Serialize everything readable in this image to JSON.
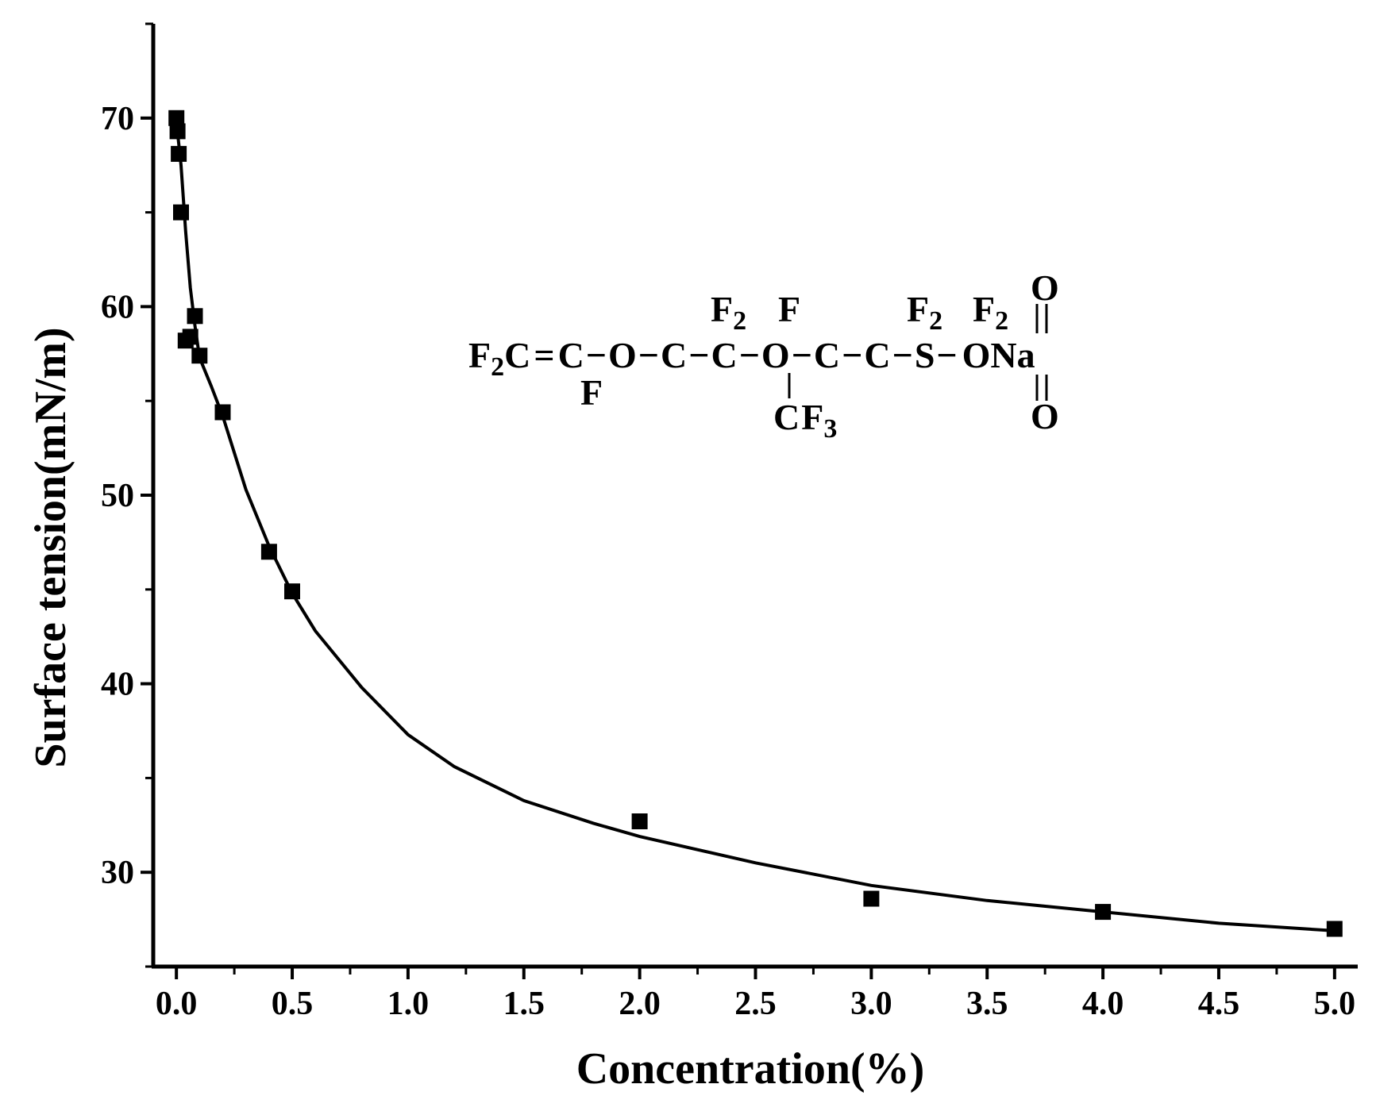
{
  "chart_data": {
    "type": "scatter",
    "title": "",
    "xlabel": "Concentration(%)",
    "ylabel": "Surface tension(mN/m)",
    "xlim": [
      -0.1,
      5.1
    ],
    "ylim": [
      25,
      75
    ],
    "x_ticks": [
      "0.0",
      "0.5",
      "1.0",
      "1.5",
      "2.0",
      "2.5",
      "3.0",
      "3.5",
      "4.0",
      "4.5",
      "5.0"
    ],
    "y_ticks": [
      "30",
      "40",
      "50",
      "60",
      "70"
    ],
    "grid": false,
    "legend": "none",
    "series": [
      {
        "type": "scatter",
        "marker": "square",
        "color": "#000000",
        "x": [
          0.0,
          0.005,
          0.01,
          0.02,
          0.04,
          0.06,
          0.08,
          0.1,
          0.2,
          0.4,
          0.5,
          2.0,
          3.0,
          4.0,
          5.0
        ],
        "y": [
          70.0,
          69.3,
          68.1,
          65.0,
          58.2,
          58.4,
          59.5,
          57.4,
          54.4,
          47.0,
          44.9,
          32.7,
          28.6,
          27.9,
          27.0
        ]
      },
      {
        "type": "line",
        "color": "#000000",
        "x": [
          0.0,
          0.02,
          0.04,
          0.06,
          0.08,
          0.1,
          0.15,
          0.2,
          0.3,
          0.4,
          0.5,
          0.6,
          0.8,
          1.0,
          1.2,
          1.5,
          1.8,
          2.0,
          2.5,
          3.0,
          3.5,
          4.0,
          4.5,
          5.0
        ],
        "y": [
          69.8,
          67.5,
          64.0,
          61.0,
          59.0,
          57.3,
          55.8,
          54.2,
          50.3,
          47.3,
          44.8,
          42.8,
          39.8,
          37.3,
          35.6,
          33.8,
          32.6,
          31.9,
          30.5,
          29.3,
          28.5,
          27.9,
          27.3,
          26.9
        ]
      }
    ],
    "annotation": {
      "main_chain": [
        "F",
        "2",
        "C",
        "=",
        "C",
        "−",
        "O",
        "−",
        "C",
        "−",
        "C",
        "−",
        "O",
        "−",
        "C",
        "−",
        "C",
        "−",
        "S",
        "−",
        "ONa"
      ],
      "above": [
        "F",
        "2",
        "F",
        "F",
        "2",
        "F",
        "2",
        "O"
      ],
      "below": [
        "F",
        "C",
        "F",
        "3",
        "O"
      ]
    }
  }
}
